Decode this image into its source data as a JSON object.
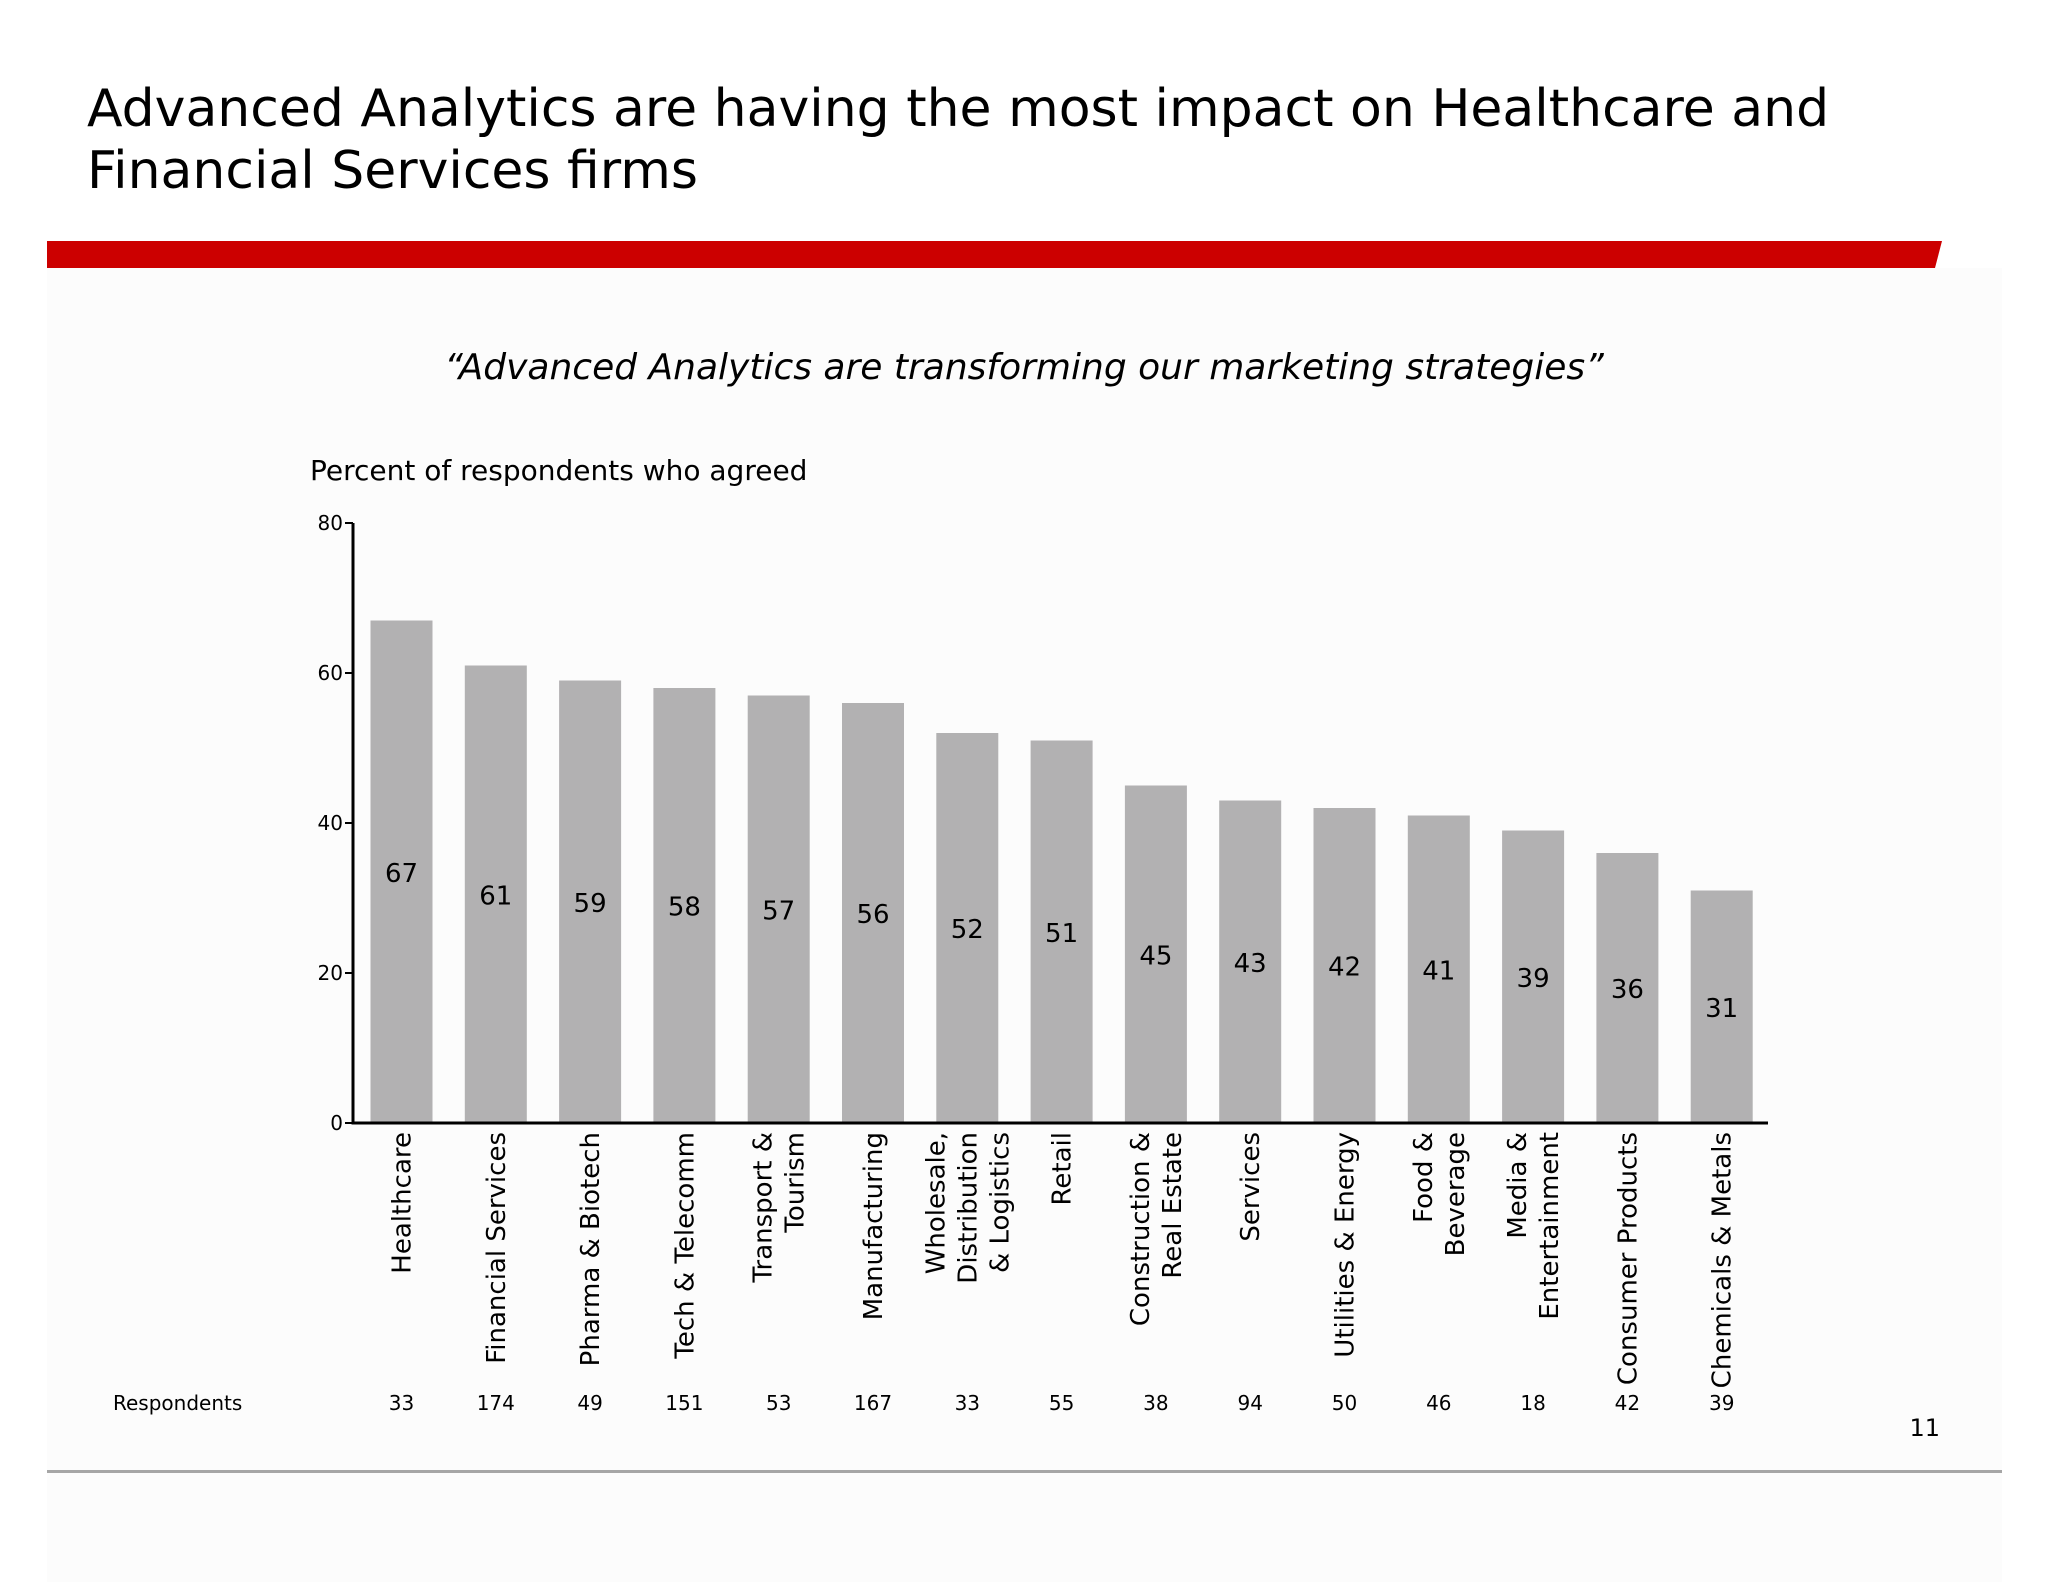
{
  "header": {
    "title": "Advanced Analytics are having the most impact on Healthcare and\nFinancial Services firms",
    "accent_color": "#cc0000"
  },
  "quote": "“Advanced Analytics are transforming our marketing strategies”",
  "footer": {
    "respondents_label": "Respondents",
    "page_number": "11"
  },
  "chart_data": {
    "type": "bar",
    "title": "",
    "ylabel": "Percent of respondents who agreed",
    "xlabel": "",
    "ylim": [
      0,
      80
    ],
    "yticks": [
      0,
      20,
      40,
      60,
      80
    ],
    "grid": false,
    "bar_color": "#b2b1b2",
    "categories": [
      "Healthcare",
      "Financial Services",
      "Pharma & Biotech",
      "Tech & Telecomm",
      "Transport & Tourism",
      "Manufacturing",
      "Wholesale, Distribution & Logistics",
      "Retail",
      "Construction & Real Estate",
      "Services",
      "Utilities & Energy",
      "Food & Beverage",
      "Media & Entertainment",
      "Consumer Products",
      "Chemicals & Metals"
    ],
    "category_lines": [
      [
        "Healthcare"
      ],
      [
        "Financial Services"
      ],
      [
        "Pharma & Biotech"
      ],
      [
        "Tech & Telecomm"
      ],
      [
        "Transport &",
        "Tourism"
      ],
      [
        "Manufacturing"
      ],
      [
        "Wholesale,",
        "Distribution",
        "& Logistics"
      ],
      [
        "Retail"
      ],
      [
        "Construction &",
        "Real Estate"
      ],
      [
        "Services"
      ],
      [
        "Utilities & Energy"
      ],
      [
        "Food &",
        "Beverage"
      ],
      [
        "Media &",
        "Entertainment"
      ],
      [
        "Consumer Products"
      ],
      [
        "Chemicals & Metals"
      ]
    ],
    "values": [
      67,
      61,
      59,
      58,
      57,
      56,
      52,
      51,
      45,
      43,
      42,
      41,
      39,
      36,
      31
    ],
    "respondents": [
      33,
      174,
      49,
      151,
      53,
      167,
      33,
      55,
      38,
      94,
      50,
      46,
      18,
      42,
      39
    ]
  }
}
